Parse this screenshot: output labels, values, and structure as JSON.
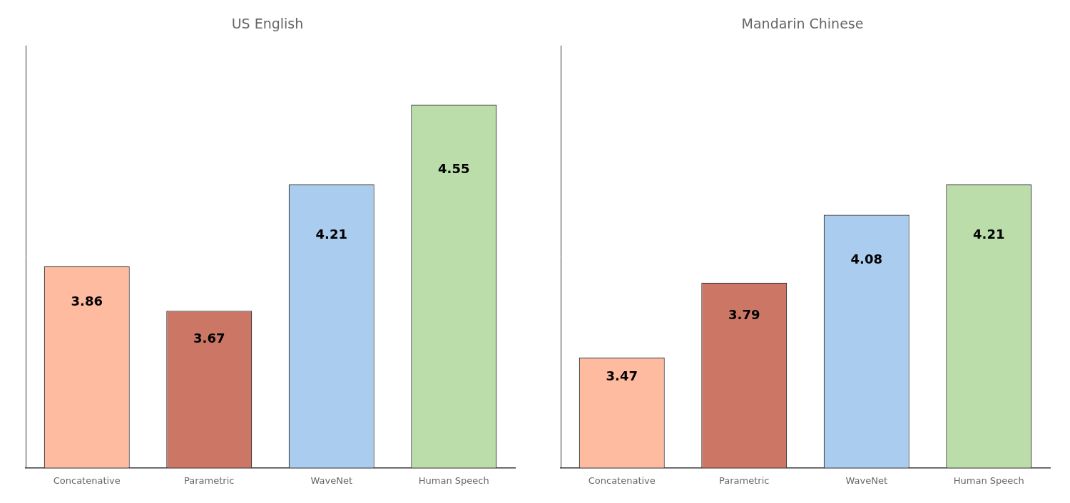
{
  "chart_data": [
    {
      "type": "bar",
      "title": "US English",
      "categories": [
        "Concatenative",
        "Parametric",
        "WaveNet",
        "Human Speech"
      ],
      "values": [
        3.86,
        3.67,
        4.21,
        4.55
      ],
      "colors": [
        "#FFBBA0",
        "#CC7766",
        "#AACCEE",
        "#BBDDAA"
      ],
      "ylim": [
        3.0,
        4.8
      ],
      "grid": false,
      "data_labels": true,
      "tick_labels": "x"
    },
    {
      "type": "bar",
      "title": "Mandarin Chinese",
      "categories": [
        "Concatenative",
        "Parametric",
        "WaveNet",
        "Human Speech"
      ],
      "values": [
        3.47,
        3.79,
        4.08,
        4.21
      ],
      "colors": [
        "#FFBBA0",
        "#CC7766",
        "#AACCEE",
        "#BBDDAA"
      ],
      "ylim": [
        3.0,
        4.8
      ],
      "grid": false,
      "data_labels": true,
      "tick_labels": "x"
    }
  ]
}
